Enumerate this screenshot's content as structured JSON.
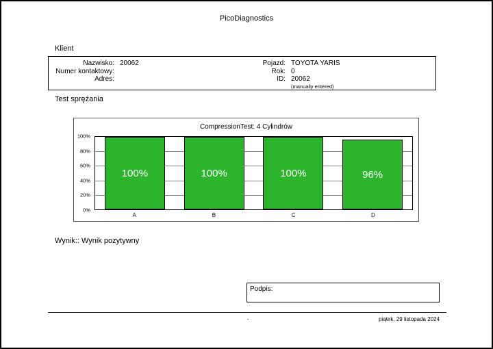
{
  "page": {
    "app_title": "PicoDiagnostics",
    "footer": {
      "center": "-",
      "date": "piątek, 29 listopada 2024"
    }
  },
  "client": {
    "section_label": "Klient",
    "fields_left": [
      {
        "label": "Nazwisko:",
        "value": "20062"
      },
      {
        "label": "Numer kontaktowy:",
        "value": ""
      },
      {
        "label": "Adres:",
        "value": ""
      }
    ],
    "fields_right": [
      {
        "label": "Pojazd:",
        "value": "TOYOTA YARIS"
      },
      {
        "label": "Rok:",
        "value": "0"
      },
      {
        "label": "ID:",
        "value": "20062"
      },
      {
        "label": "",
        "value": "(manually entered)"
      }
    ]
  },
  "test": {
    "section_label": "Test sprężania",
    "result_label": "Wynik:: Wynik pozytywny"
  },
  "signature": {
    "label": "Podpis:"
  },
  "chart_data": {
    "type": "bar",
    "title": "CompressionTest: 4 Cylindrów",
    "categories": [
      "A",
      "B",
      "C",
      "D"
    ],
    "values": [
      100,
      100,
      100,
      96
    ],
    "value_labels": [
      "100%",
      "100%",
      "100%",
      "96%"
    ],
    "y_ticks": [
      "100%",
      "80%",
      "60%",
      "40%",
      "20%",
      "0%"
    ],
    "ylim": [
      0,
      100
    ],
    "ylabel": "",
    "xlabel": "",
    "grid": true,
    "legend": false,
    "bar_color": "#2db42d",
    "bar_border_color": "#000000",
    "bar_label_color": "#ffffff"
  }
}
